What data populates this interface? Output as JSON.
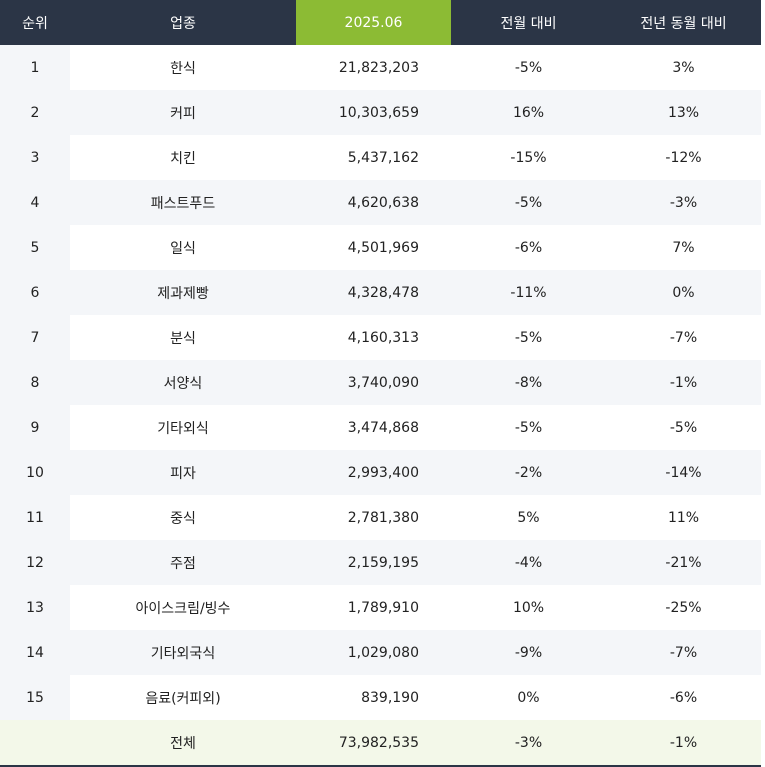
{
  "header": {
    "rank": "순위",
    "category": "업종",
    "period": "2025.06",
    "mom": "전월 대비",
    "yoy": "전년 동월 대비"
  },
  "rows": [
    {
      "rank": "1",
      "category": "한식",
      "value": "21,823,203",
      "mom": "-5%",
      "yoy": "3%"
    },
    {
      "rank": "2",
      "category": "커피",
      "value": "10,303,659",
      "mom": "16%",
      "yoy": "13%"
    },
    {
      "rank": "3",
      "category": "치킨",
      "value": "5,437,162",
      "mom": "-15%",
      "yoy": "-12%"
    },
    {
      "rank": "4",
      "category": "패스트푸드",
      "value": "4,620,638",
      "mom": "-5%",
      "yoy": "-3%"
    },
    {
      "rank": "5",
      "category": "일식",
      "value": "4,501,969",
      "mom": "-6%",
      "yoy": "7%"
    },
    {
      "rank": "6",
      "category": "제과제빵",
      "value": "4,328,478",
      "mom": "-11%",
      "yoy": "0%"
    },
    {
      "rank": "7",
      "category": "분식",
      "value": "4,160,313",
      "mom": "-5%",
      "yoy": "-7%"
    },
    {
      "rank": "8",
      "category": "서양식",
      "value": "3,740,090",
      "mom": "-8%",
      "yoy": "-1%"
    },
    {
      "rank": "9",
      "category": "기타외식",
      "value": "3,474,868",
      "mom": "-5%",
      "yoy": "-5%"
    },
    {
      "rank": "10",
      "category": "피자",
      "value": "2,993,400",
      "mom": "-2%",
      "yoy": "-14%"
    },
    {
      "rank": "11",
      "category": "중식",
      "value": "2,781,380",
      "mom": "5%",
      "yoy": "11%"
    },
    {
      "rank": "12",
      "category": "주점",
      "value": "2,159,195",
      "mom": "-4%",
      "yoy": "-21%"
    },
    {
      "rank": "13",
      "category": "아이스크림/빙수",
      "value": "1,789,910",
      "mom": "10%",
      "yoy": "-25%"
    },
    {
      "rank": "14",
      "category": "기타외국식",
      "value": "1,029,080",
      "mom": "-9%",
      "yoy": "-7%"
    },
    {
      "rank": "15",
      "category": "음료(커피외)",
      "value": "839,190",
      "mom": "0%",
      "yoy": "-6%"
    }
  ],
  "total": {
    "rank": "",
    "category": "전체",
    "value": "73,982,535",
    "mom": "-3%",
    "yoy": "-1%"
  },
  "colors": {
    "header_bg": "#2b3546",
    "highlight_bg": "#8cbb34",
    "alt_row_bg": "#f4f6f9",
    "total_row_bg": "#f3f8e9"
  }
}
